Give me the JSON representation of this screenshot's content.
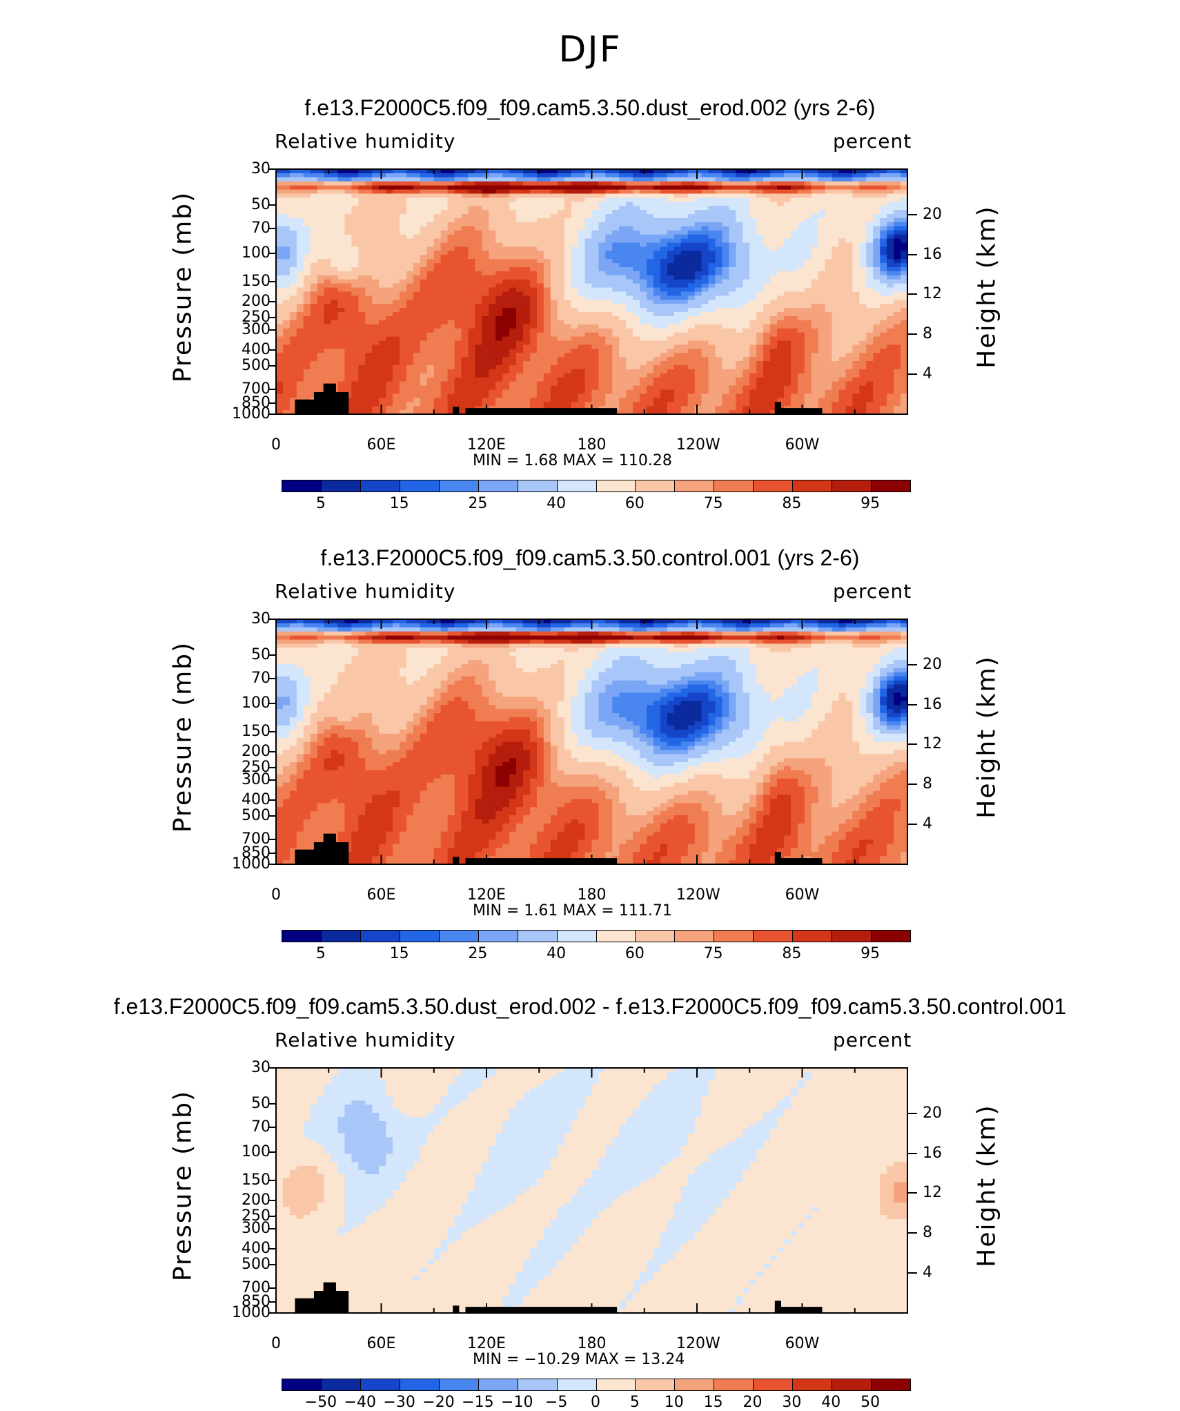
{
  "main_title": "DJF",
  "panels": [
    {
      "title": "f.e13.F2000C5.f09_f09.cam5.3.50.dust_erod.002 (yrs 2-6)",
      "left_header": "Relative humidity",
      "right_header": "percent",
      "ylabel": "Pressure (mb)",
      "ylabel_right": "Height (km)",
      "min_max": "MIN =    1.68   MAX  =  110.28"
    },
    {
      "title": "f.e13.F2000C5.f09_f09.cam5.3.50.control.001 (yrs 2-6)",
      "left_header": "Relative humidity",
      "right_header": "percent",
      "ylabel": "Pressure (mb)",
      "ylabel_right": "Height (km)",
      "min_max": "MIN =    1.61   MAX  =  111.71"
    },
    {
      "title": "f.e13.F2000C5.f09_f09.cam5.3.50.dust_erod.002 - f.e13.F2000C5.f09_f09.cam5.3.50.control.001",
      "left_header": "Relative humidity",
      "right_header": "percent",
      "ylabel": "Pressure (mb)",
      "ylabel_right": "Height (km)",
      "min_max": "MIN = −10.29   MAX  =   13.24"
    }
  ],
  "chart_data": [
    {
      "type": "heatmap",
      "title": "f.e13.F2000C5.f09_f09.cam5.3.50.dust_erod.002 (yrs 2-6)",
      "ylabel": "Pressure (mb)",
      "ylabel_right": "Height (km)",
      "x_ticks": [
        "0",
        "60E",
        "120E",
        "180",
        "120W",
        "60W"
      ],
      "y_ticks": [
        "30",
        "50",
        "70",
        "100",
        "150",
        "200",
        "250",
        "300",
        "400",
        "500",
        "700",
        "850",
        "1000"
      ],
      "y_right_ticks": [
        "20",
        "16",
        "12",
        "8",
        "4"
      ],
      "colorbar_labels": [
        "5",
        "15",
        "25",
        "40",
        "60",
        "75",
        "85",
        "95"
      ],
      "colorbar_colors": [
        "#000080",
        "#0a2a9e",
        "#1545c8",
        "#2266e6",
        "#4a86f0",
        "#7aa6f5",
        "#a8c6f8",
        "#d4e6fc",
        "#fbe4d0",
        "#f9c7a8",
        "#f5a37c",
        "#f07c52",
        "#e95430",
        "#d43618",
        "#b51e0c",
        "#8b0000"
      ],
      "min": 1.68,
      "max": 110.28,
      "description_values": {
        "field": "Relative humidity",
        "units": "percent"
      }
    },
    {
      "type": "heatmap",
      "title": "f.e13.F2000C5.f09_f09.cam5.3.50.control.001 (yrs 2-6)",
      "ylabel": "Pressure (mb)",
      "ylabel_right": "Height (km)",
      "x_ticks": [
        "0",
        "60E",
        "120E",
        "180",
        "120W",
        "60W"
      ],
      "y_ticks": [
        "30",
        "50",
        "70",
        "100",
        "150",
        "200",
        "250",
        "300",
        "400",
        "500",
        "700",
        "850",
        "1000"
      ],
      "y_right_ticks": [
        "20",
        "16",
        "12",
        "8",
        "4"
      ],
      "colorbar_labels": [
        "5",
        "15",
        "25",
        "40",
        "60",
        "75",
        "85",
        "95"
      ],
      "colorbar_colors": [
        "#000080",
        "#0a2a9e",
        "#1545c8",
        "#2266e6",
        "#4a86f0",
        "#7aa6f5",
        "#a8c6f8",
        "#d4e6fc",
        "#fbe4d0",
        "#f9c7a8",
        "#f5a37c",
        "#f07c52",
        "#e95430",
        "#d43618",
        "#b51e0c",
        "#8b0000"
      ],
      "min": 1.61,
      "max": 111.71,
      "description_values": {
        "field": "Relative humidity",
        "units": "percent"
      }
    },
    {
      "type": "heatmap",
      "title": "f.e13.F2000C5.f09_f09.cam5.3.50.dust_erod.002 - f.e13.F2000C5.f09_f09.cam5.3.50.control.001",
      "ylabel": "Pressure (mb)",
      "ylabel_right": "Height (km)",
      "x_ticks": [
        "0",
        "60E",
        "120E",
        "180",
        "120W",
        "60W"
      ],
      "y_ticks": [
        "30",
        "50",
        "70",
        "100",
        "150",
        "200",
        "250",
        "300",
        "400",
        "500",
        "700",
        "850",
        "1000"
      ],
      "y_right_ticks": [
        "20",
        "16",
        "12",
        "8",
        "4"
      ],
      "colorbar_labels": [
        "−50",
        "−40",
        "−30",
        "−20",
        "−15",
        "−10",
        "−5",
        "0",
        "5",
        "10",
        "15",
        "20",
        "30",
        "40",
        "50"
      ],
      "colorbar_colors": [
        "#000080",
        "#0a2a9e",
        "#1545c8",
        "#2266e6",
        "#4a86f0",
        "#7aa6f5",
        "#a8c6f8",
        "#d4e6fc",
        "#fbe4d0",
        "#f9c7a8",
        "#f5a37c",
        "#f07c52",
        "#e95430",
        "#d43618",
        "#b51e0c",
        "#8b0000"
      ],
      "min": -10.29,
      "max": 13.24,
      "description_values": {
        "field": "Relative humidity",
        "units": "percent"
      }
    }
  ]
}
